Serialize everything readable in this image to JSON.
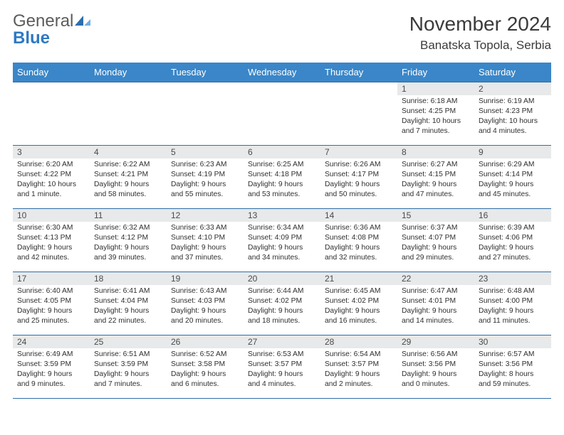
{
  "brand": {
    "word1": "General",
    "word2": "Blue"
  },
  "title": "November 2024",
  "location": "Banatska Topola, Serbia",
  "colors": {
    "dow_bg": "#3a86c8",
    "daynum_bg": "#e7e9ea",
    "divider": "#2f6fa8",
    "logo_tri_a": "#2b6fb0",
    "logo_tri_b": "#74aedd"
  },
  "fonts": {
    "title_size": 28,
    "location_size": 17,
    "dow_size": 13,
    "daynum_size": 12,
    "body_size": 10.3
  },
  "dows": [
    "Sunday",
    "Monday",
    "Tuesday",
    "Wednesday",
    "Thursday",
    "Friday",
    "Saturday"
  ],
  "first_dow_index": 5,
  "days": [
    {
      "n": 1,
      "sunrise": "6:18 AM",
      "sunset": "4:25 PM",
      "daylight": "10 hours and 7 minutes."
    },
    {
      "n": 2,
      "sunrise": "6:19 AM",
      "sunset": "4:23 PM",
      "daylight": "10 hours and 4 minutes."
    },
    {
      "n": 3,
      "sunrise": "6:20 AM",
      "sunset": "4:22 PM",
      "daylight": "10 hours and 1 minute."
    },
    {
      "n": 4,
      "sunrise": "6:22 AM",
      "sunset": "4:21 PM",
      "daylight": "9 hours and 58 minutes."
    },
    {
      "n": 5,
      "sunrise": "6:23 AM",
      "sunset": "4:19 PM",
      "daylight": "9 hours and 55 minutes."
    },
    {
      "n": 6,
      "sunrise": "6:25 AM",
      "sunset": "4:18 PM",
      "daylight": "9 hours and 53 minutes."
    },
    {
      "n": 7,
      "sunrise": "6:26 AM",
      "sunset": "4:17 PM",
      "daylight": "9 hours and 50 minutes."
    },
    {
      "n": 8,
      "sunrise": "6:27 AM",
      "sunset": "4:15 PM",
      "daylight": "9 hours and 47 minutes."
    },
    {
      "n": 9,
      "sunrise": "6:29 AM",
      "sunset": "4:14 PM",
      "daylight": "9 hours and 45 minutes."
    },
    {
      "n": 10,
      "sunrise": "6:30 AM",
      "sunset": "4:13 PM",
      "daylight": "9 hours and 42 minutes."
    },
    {
      "n": 11,
      "sunrise": "6:32 AM",
      "sunset": "4:12 PM",
      "daylight": "9 hours and 39 minutes."
    },
    {
      "n": 12,
      "sunrise": "6:33 AM",
      "sunset": "4:10 PM",
      "daylight": "9 hours and 37 minutes."
    },
    {
      "n": 13,
      "sunrise": "6:34 AM",
      "sunset": "4:09 PM",
      "daylight": "9 hours and 34 minutes."
    },
    {
      "n": 14,
      "sunrise": "6:36 AM",
      "sunset": "4:08 PM",
      "daylight": "9 hours and 32 minutes."
    },
    {
      "n": 15,
      "sunrise": "6:37 AM",
      "sunset": "4:07 PM",
      "daylight": "9 hours and 29 minutes."
    },
    {
      "n": 16,
      "sunrise": "6:39 AM",
      "sunset": "4:06 PM",
      "daylight": "9 hours and 27 minutes."
    },
    {
      "n": 17,
      "sunrise": "6:40 AM",
      "sunset": "4:05 PM",
      "daylight": "9 hours and 25 minutes."
    },
    {
      "n": 18,
      "sunrise": "6:41 AM",
      "sunset": "4:04 PM",
      "daylight": "9 hours and 22 minutes."
    },
    {
      "n": 19,
      "sunrise": "6:43 AM",
      "sunset": "4:03 PM",
      "daylight": "9 hours and 20 minutes."
    },
    {
      "n": 20,
      "sunrise": "6:44 AM",
      "sunset": "4:02 PM",
      "daylight": "9 hours and 18 minutes."
    },
    {
      "n": 21,
      "sunrise": "6:45 AM",
      "sunset": "4:02 PM",
      "daylight": "9 hours and 16 minutes."
    },
    {
      "n": 22,
      "sunrise": "6:47 AM",
      "sunset": "4:01 PM",
      "daylight": "9 hours and 14 minutes."
    },
    {
      "n": 23,
      "sunrise": "6:48 AM",
      "sunset": "4:00 PM",
      "daylight": "9 hours and 11 minutes."
    },
    {
      "n": 24,
      "sunrise": "6:49 AM",
      "sunset": "3:59 PM",
      "daylight": "9 hours and 9 minutes."
    },
    {
      "n": 25,
      "sunrise": "6:51 AM",
      "sunset": "3:59 PM",
      "daylight": "9 hours and 7 minutes."
    },
    {
      "n": 26,
      "sunrise": "6:52 AM",
      "sunset": "3:58 PM",
      "daylight": "9 hours and 6 minutes."
    },
    {
      "n": 27,
      "sunrise": "6:53 AM",
      "sunset": "3:57 PM",
      "daylight": "9 hours and 4 minutes."
    },
    {
      "n": 28,
      "sunrise": "6:54 AM",
      "sunset": "3:57 PM",
      "daylight": "9 hours and 2 minutes."
    },
    {
      "n": 29,
      "sunrise": "6:56 AM",
      "sunset": "3:56 PM",
      "daylight": "9 hours and 0 minutes."
    },
    {
      "n": 30,
      "sunrise": "6:57 AM",
      "sunset": "3:56 PM",
      "daylight": "8 hours and 59 minutes."
    }
  ]
}
